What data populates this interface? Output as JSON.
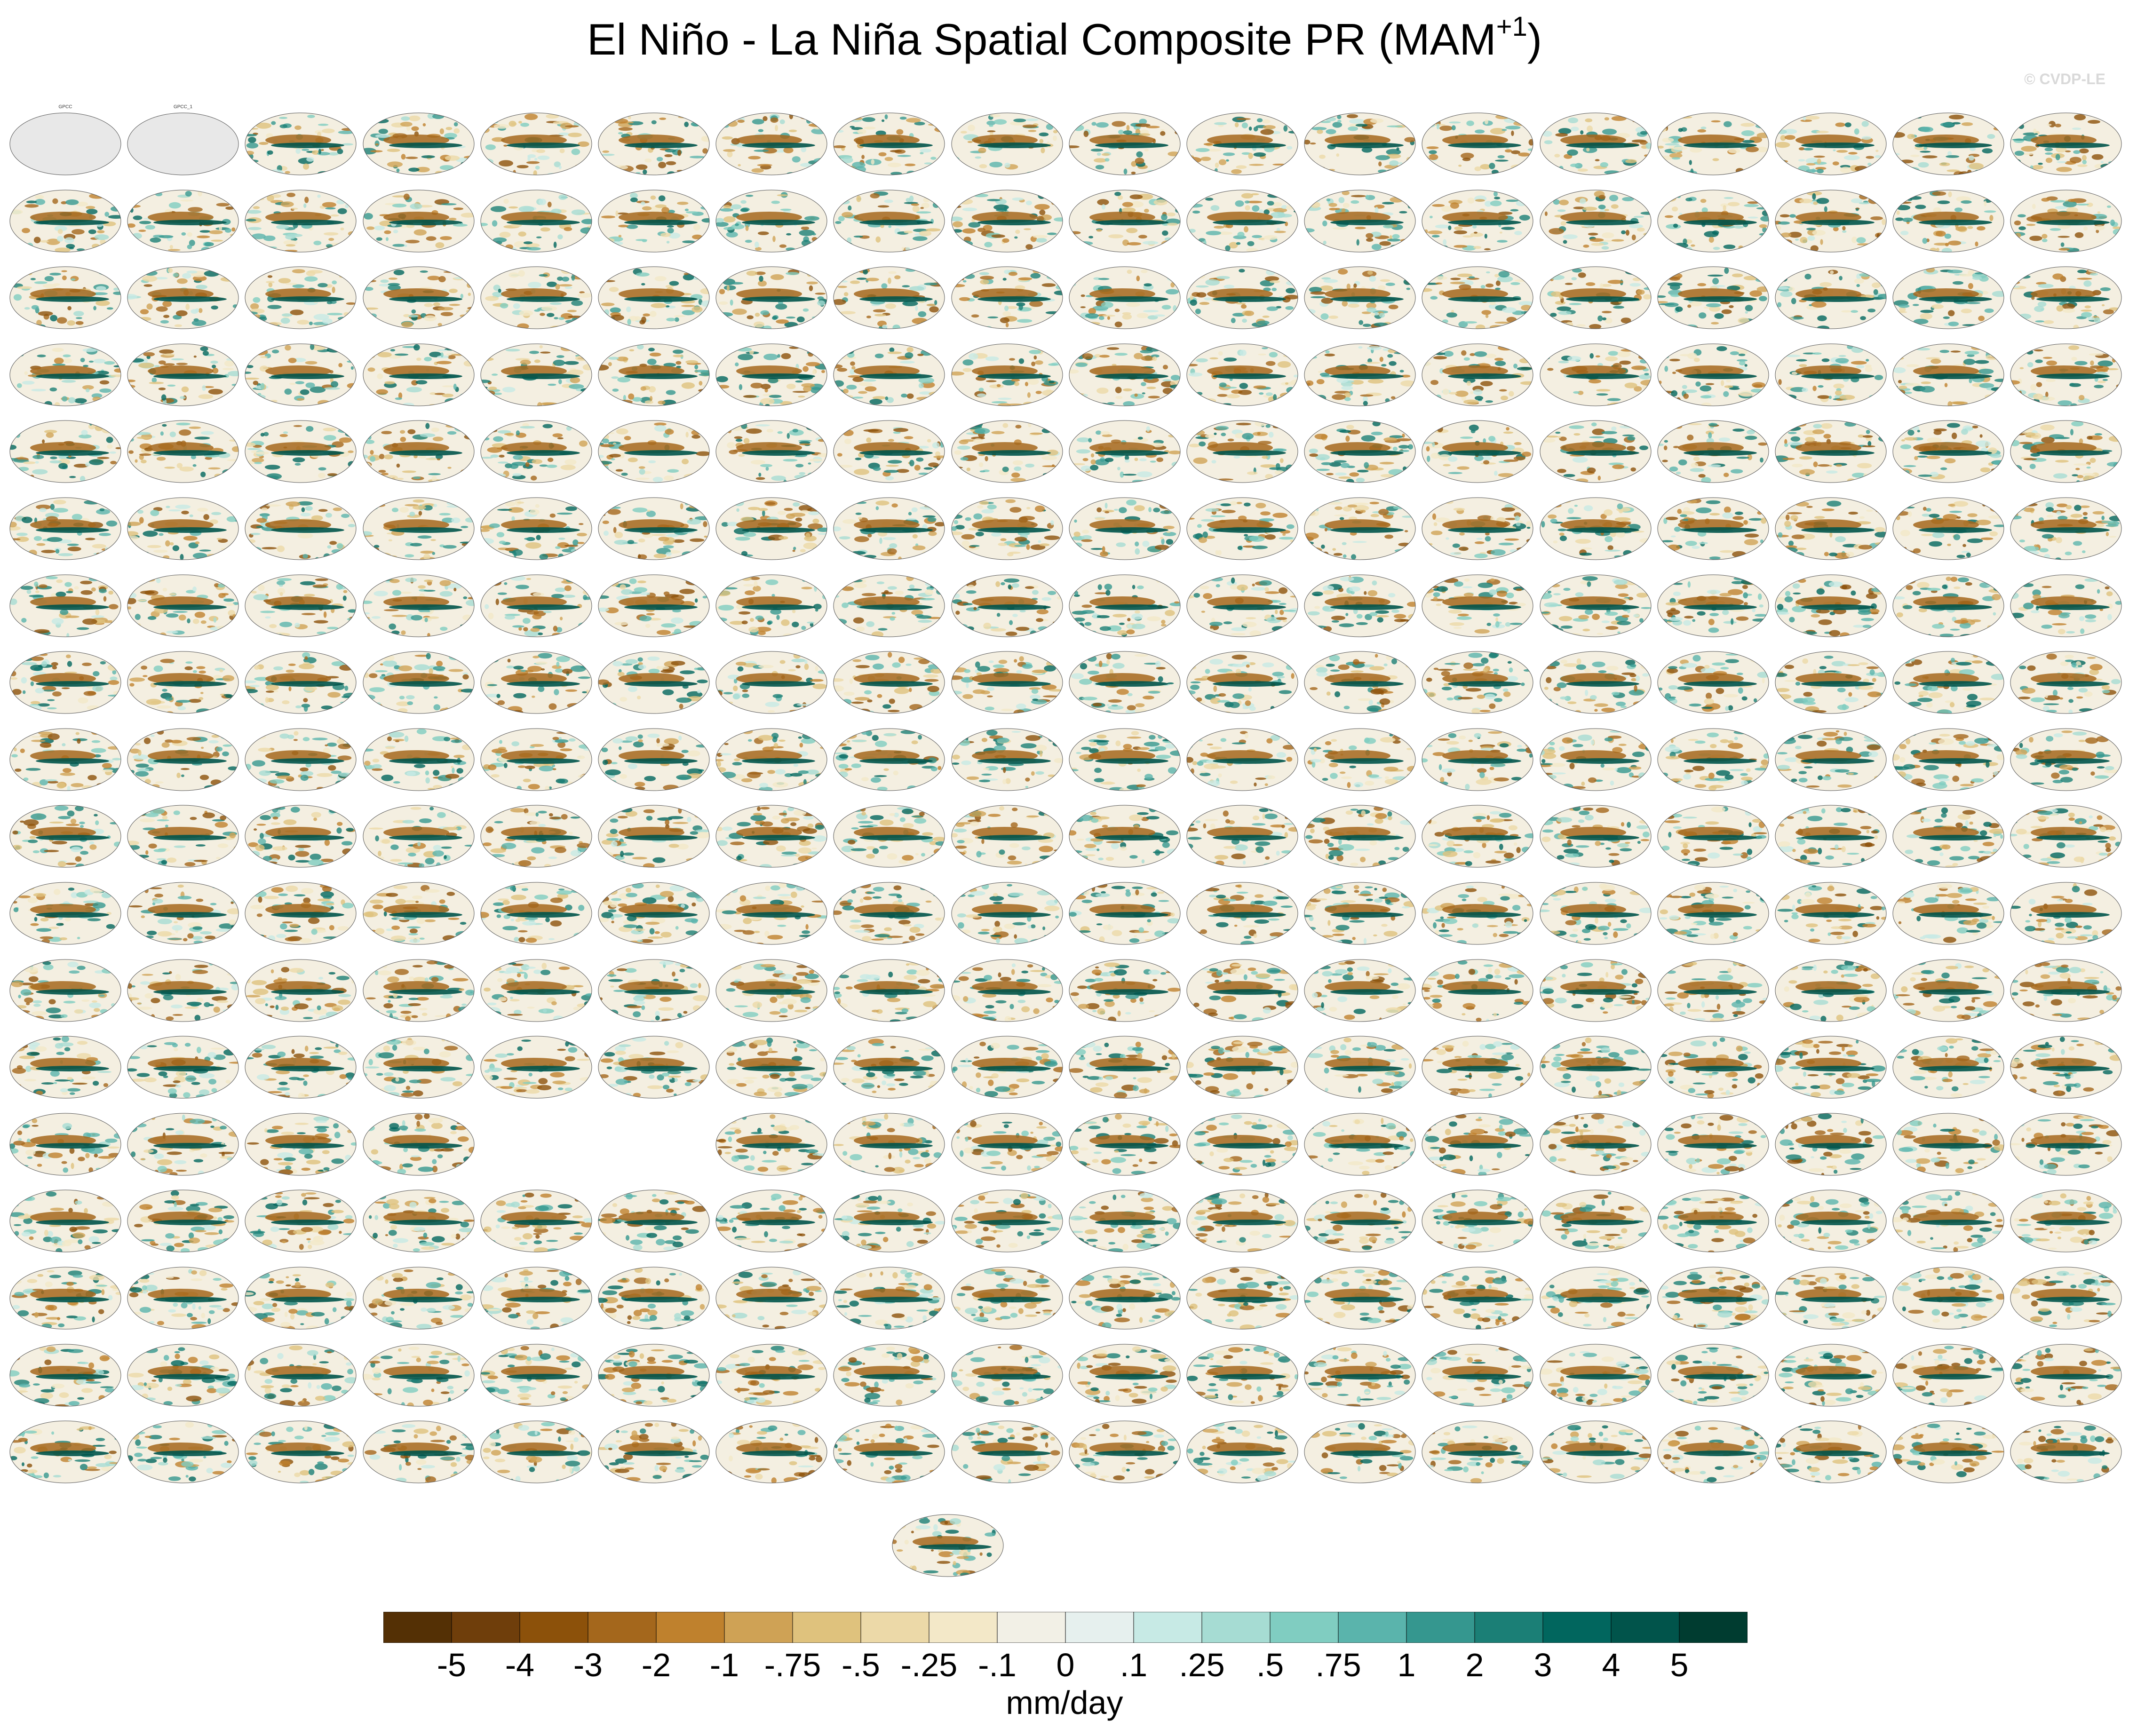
{
  "title": {
    "main": "El Niño - La Niña Spatial Composite PR (MAM",
    "superscript": "+1",
    "close": ")"
  },
  "watermark": "© CVDP-LE",
  "chart_data": {
    "type": "heatmap",
    "description_units": "mm/day",
    "panel_count": 307,
    "observation_panels": [
      "GPCC",
      "GPCC_1"
    ],
    "colorbar": {
      "units": "mm/day",
      "labels": [
        "-5",
        "-4",
        "-3",
        "-2",
        "-1",
        "-.75",
        "-.5",
        "-.25",
        "-.1",
        "0",
        ".1",
        ".25",
        ".5",
        ".75",
        "1",
        "2",
        "3",
        "4",
        "5"
      ],
      "colors": [
        "#543005",
        "#6f3e0b",
        "#8c510a",
        "#a4671c",
        "#bf812d",
        "#cfa255",
        "#dfc27d",
        "#ecd9a8",
        "#f3e8c8",
        "#f2f0e6",
        "#e6f0ee",
        "#c7eae5",
        "#a6dcd3",
        "#80cdc1",
        "#5ab4ac",
        "#35978f",
        "#1b7f76",
        "#01665e",
        "#01544b",
        "#003c30"
      ]
    }
  }
}
